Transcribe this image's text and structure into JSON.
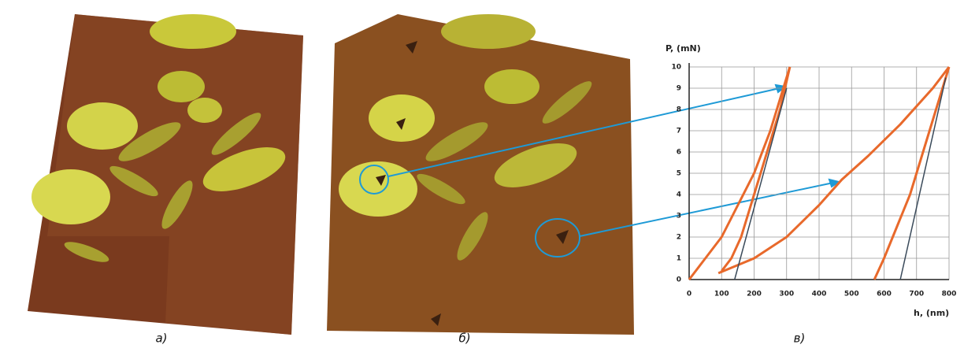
{
  "panels": [
    "а)",
    "б)",
    "в)"
  ],
  "chart_data": {
    "type": "line",
    "ylabel": "P, (mN)",
    "xlabel": "h, (nm)",
    "xlim": [
      0,
      800
    ],
    "xticks": [
      0,
      100,
      200,
      300,
      400,
      500,
      600,
      700,
      800
    ],
    "ylim": [
      0,
      10
    ],
    "yticks": [
      0,
      1,
      2,
      3,
      4,
      5,
      6,
      7,
      8,
      9,
      10
    ],
    "grid": true,
    "series": [
      {
        "color": "#e8692b",
        "x": [
          0,
          50,
          100,
          150,
          200,
          250,
          290,
          310
        ],
        "values": [
          0,
          1,
          2,
          3.5,
          5,
          7,
          9,
          10
        ]
      },
      {
        "color": "#e8692b",
        "x": [
          310,
          280,
          240,
          200,
          160,
          130,
          100
        ],
        "values": [
          10,
          8,
          6,
          4,
          2,
          1,
          0.4
        ]
      },
      {
        "color": "#e8692b",
        "x": [
          90,
          200,
          300,
          400,
          470,
          550,
          650,
          750,
          800
        ],
        "values": [
          0.3,
          1,
          2,
          3.5,
          4.7,
          5.8,
          7.3,
          9,
          10
        ]
      },
      {
        "color": "#e8692b",
        "x": [
          800,
          760,
          720,
          680,
          640,
          600,
          570
        ],
        "values": [
          10,
          8,
          6,
          4,
          2.5,
          1,
          0
        ]
      },
      {
        "color": "#3a4a5a",
        "x": [
          140,
          300
        ],
        "values": [
          0,
          9
        ]
      },
      {
        "color": "#3a4a5a",
        "x": [
          650,
          790
        ],
        "values": [
          0,
          9.5
        ]
      }
    ]
  }
}
